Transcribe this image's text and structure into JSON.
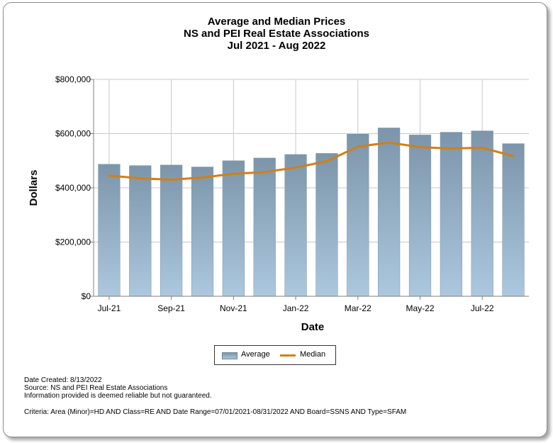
{
  "chart_data": {
    "type": "bar",
    "title": [
      "Average and Median Prices",
      "NS and PEI Real Estate Associations",
      "Jul 2021 - Aug 2022"
    ],
    "xlabel": "Date",
    "ylabel": "Dollars",
    "ylim": [
      0,
      800000
    ],
    "yticks": [
      0,
      200000,
      400000,
      600000,
      800000
    ],
    "ytick_labels": [
      "$0",
      "$200,000",
      "$400,000",
      "$600,000",
      "$800,000"
    ],
    "categories": [
      "Jul-21",
      "Aug-21",
      "Sep-21",
      "Oct-21",
      "Nov-21",
      "Dec-21",
      "Jan-22",
      "Feb-22",
      "Mar-22",
      "Apr-22",
      "May-22",
      "Jun-22",
      "Jul-22",
      "Aug-22"
    ],
    "xtick_labels": [
      "Jul-21",
      "",
      "Sep-21",
      "",
      "Nov-21",
      "",
      "Jan-22",
      "",
      "Mar-22",
      "",
      "May-22",
      "",
      "Jul-22",
      ""
    ],
    "series": [
      {
        "name": "Average",
        "type": "bar",
        "color": "#8fa9bd",
        "values": [
          487000,
          482000,
          484000,
          477000,
          500000,
          510000,
          523000,
          527000,
          598000,
          621000,
          595000,
          605000,
          610000,
          563000
        ]
      },
      {
        "name": "Median",
        "type": "line",
        "color": "#d27f17",
        "values": [
          445000,
          435000,
          430000,
          438000,
          452000,
          458000,
          475000,
          498000,
          552000,
          567000,
          550000,
          545000,
          548000,
          517000
        ]
      }
    ],
    "grid": true,
    "legend_position": "bottom-center"
  },
  "footer": {
    "date_created": "Date Created: 8/13/2022",
    "source": "Source: NS and PEI Real Estate Associations",
    "disclaimer": "Information provided is deemed reliable but not guaranteed.",
    "criteria": "Criteria: Area (Minor)=HD AND Class=RE AND Date Range=07/01/2021-08/31/2022 AND Board=SSNS AND Type=SFAM"
  }
}
